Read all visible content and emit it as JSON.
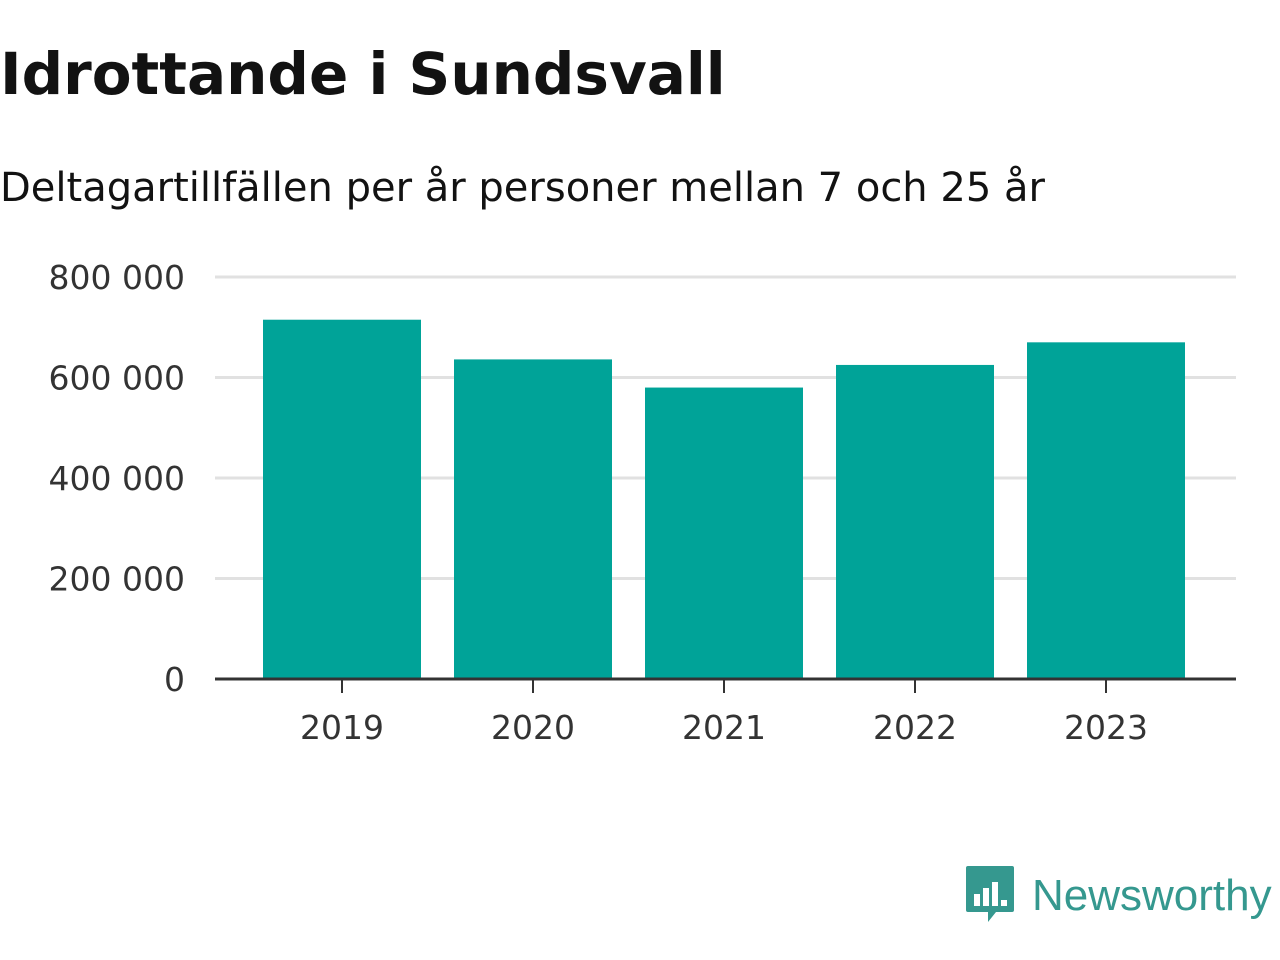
{
  "chart_data": {
    "type": "bar",
    "title": "Idrottande i Sundsvall",
    "subtitle": "Deltagartillfällen per år personer mellan 7 och 25 år",
    "categories": [
      "2019",
      "2020",
      "2021",
      "2022",
      "2023"
    ],
    "values": [
      715000,
      636000,
      580000,
      625000,
      670000
    ],
    "xlabel": "",
    "ylabel": "",
    "ylim": [
      0,
      800000
    ],
    "yticks": [
      0,
      200000,
      400000,
      600000,
      800000
    ],
    "ytick_labels": [
      "0",
      "200 000",
      "400 000",
      "600 000",
      "800 000"
    ],
    "grid": "horizontal",
    "legend": "none",
    "bar_color": "#00a398",
    "grid_color": "#e1e1e1",
    "axis_color": "#333333"
  },
  "brand": {
    "name": "Newsworthy",
    "icon": "newsworthy-logo-icon",
    "color": "#35988f"
  }
}
